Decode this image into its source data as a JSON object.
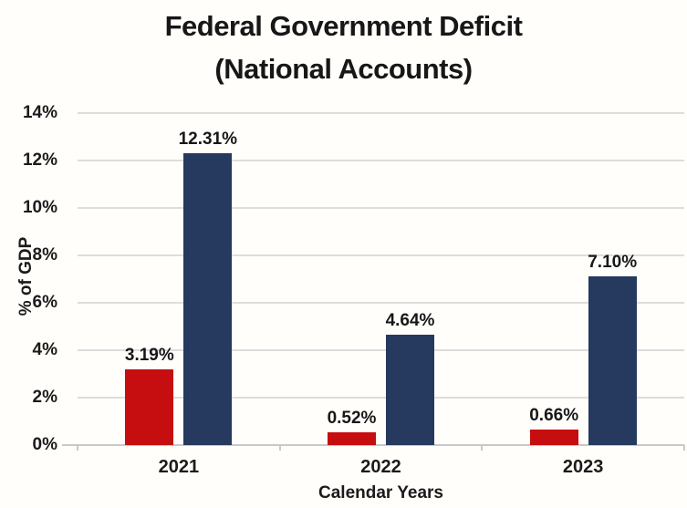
{
  "title": {
    "line1": "Federal Government Deficit",
    "line2": "(National Accounts)"
  },
  "chart_data": {
    "type": "bar",
    "title": "Federal Government Deficit (National Accounts)",
    "categories": [
      "2021",
      "2022",
      "2023"
    ],
    "series": [
      {
        "name": "red",
        "color": "#c60d0f",
        "values": [
          3.19,
          0.52,
          0.66
        ],
        "labels": [
          "3.19%",
          "0.52%",
          "0.66%"
        ]
      },
      {
        "name": "navy",
        "color": "#26395f",
        "values": [
          12.31,
          4.64,
          7.1
        ],
        "labels": [
          "12.31%",
          "4.64%",
          "7.10%"
        ]
      }
    ],
    "xlabel": "Calendar Years",
    "ylabel": "% of GDP",
    "ylim": [
      0,
      14
    ],
    "yticks": [
      0,
      2,
      4,
      6,
      8,
      10,
      12,
      14
    ],
    "ytick_labels": [
      "0%",
      "2%",
      "4%",
      "6%",
      "8%",
      "10%",
      "12%",
      "14%"
    ],
    "grid": true,
    "grid_color": "#dddddd",
    "axis_color": "#c9c9c9",
    "legend": false
  }
}
